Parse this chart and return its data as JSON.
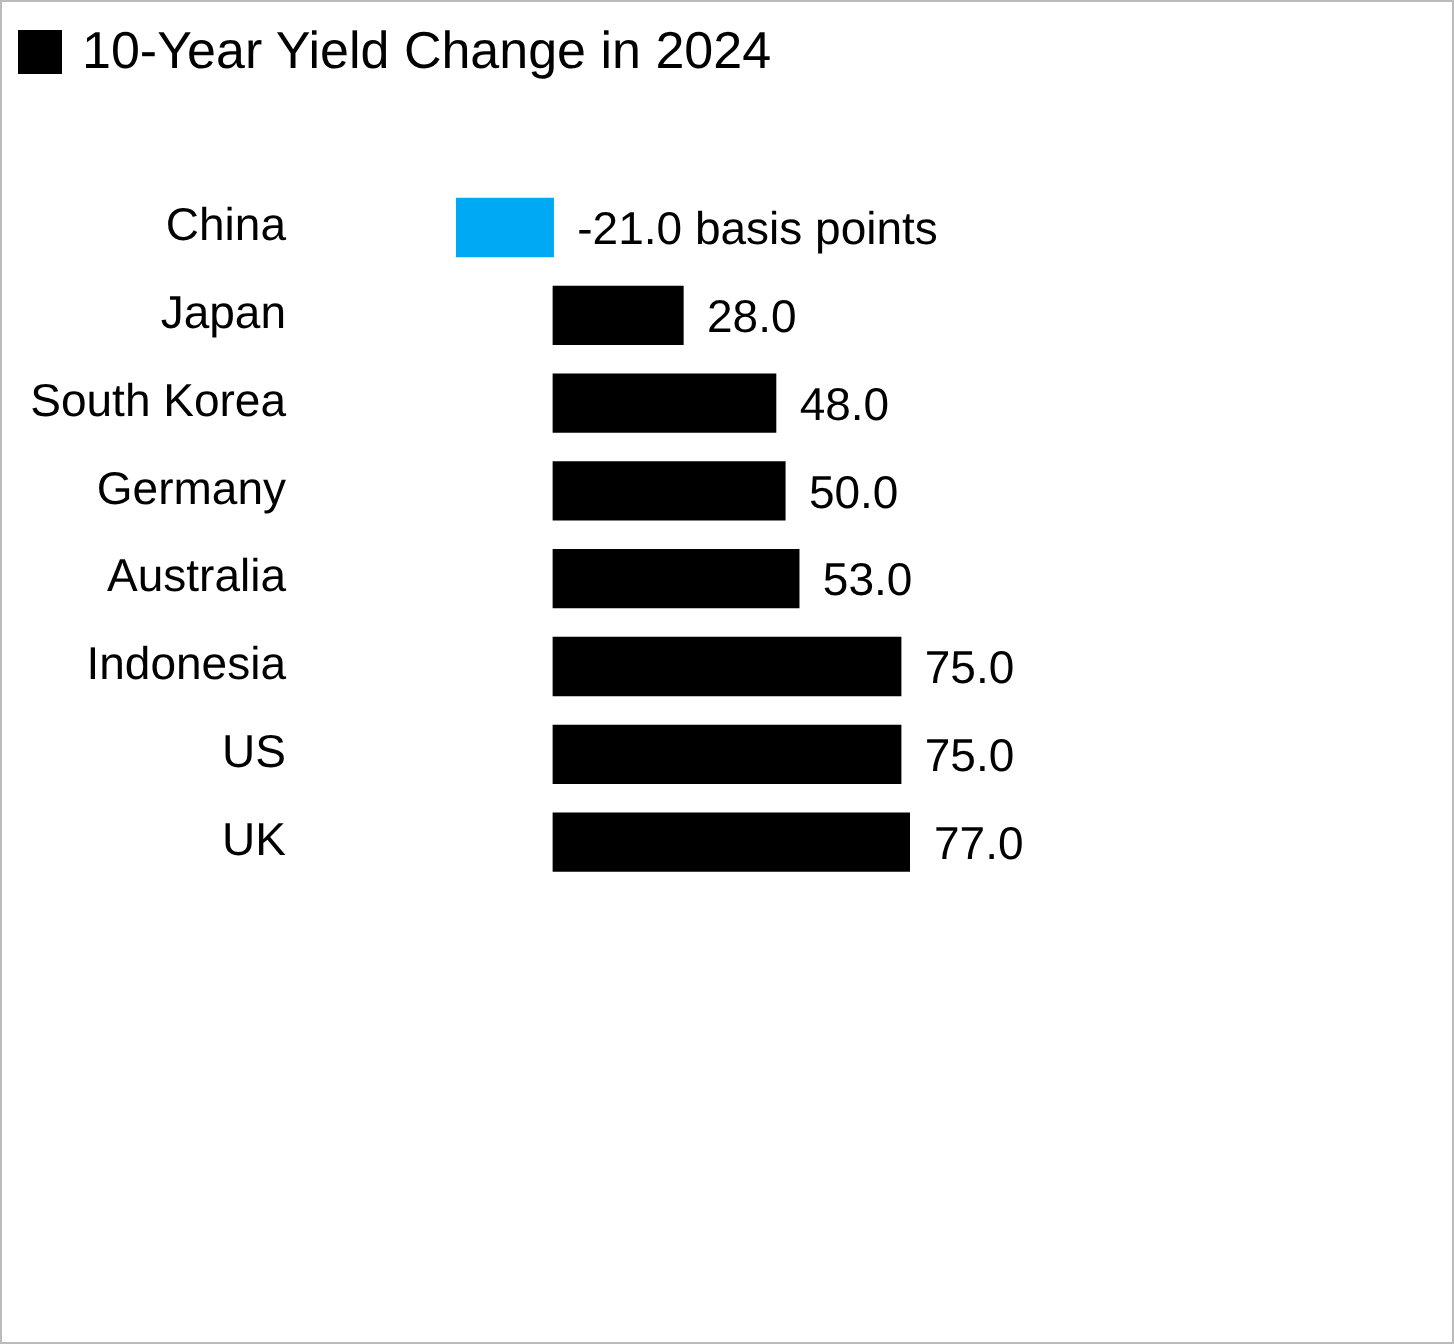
{
  "chart_data": {
    "type": "bar",
    "orientation": "horizontal",
    "legend": "top left",
    "categories": [
      "China",
      "Japan",
      "South Korea",
      "Germany",
      "Australia",
      "Indonesia",
      "US",
      "UK"
    ],
    "series": [
      {
        "name": "10-Year Yield Change in 2024",
        "color": "#000000",
        "colors": [
          "#00a9f4",
          "#000000",
          "#000000",
          "#000000",
          "#000000",
          "#000000",
          "#000000",
          "#000000"
        ],
        "values": [
          -21,
          28,
          48,
          50,
          53,
          75,
          75,
          77
        ],
        "value_labels": [
          "-21.0 basis points",
          "28.0",
          "48.0",
          "50.0",
          "53.0",
          "75.0",
          "75.0",
          "77.0"
        ]
      }
    ]
  }
}
